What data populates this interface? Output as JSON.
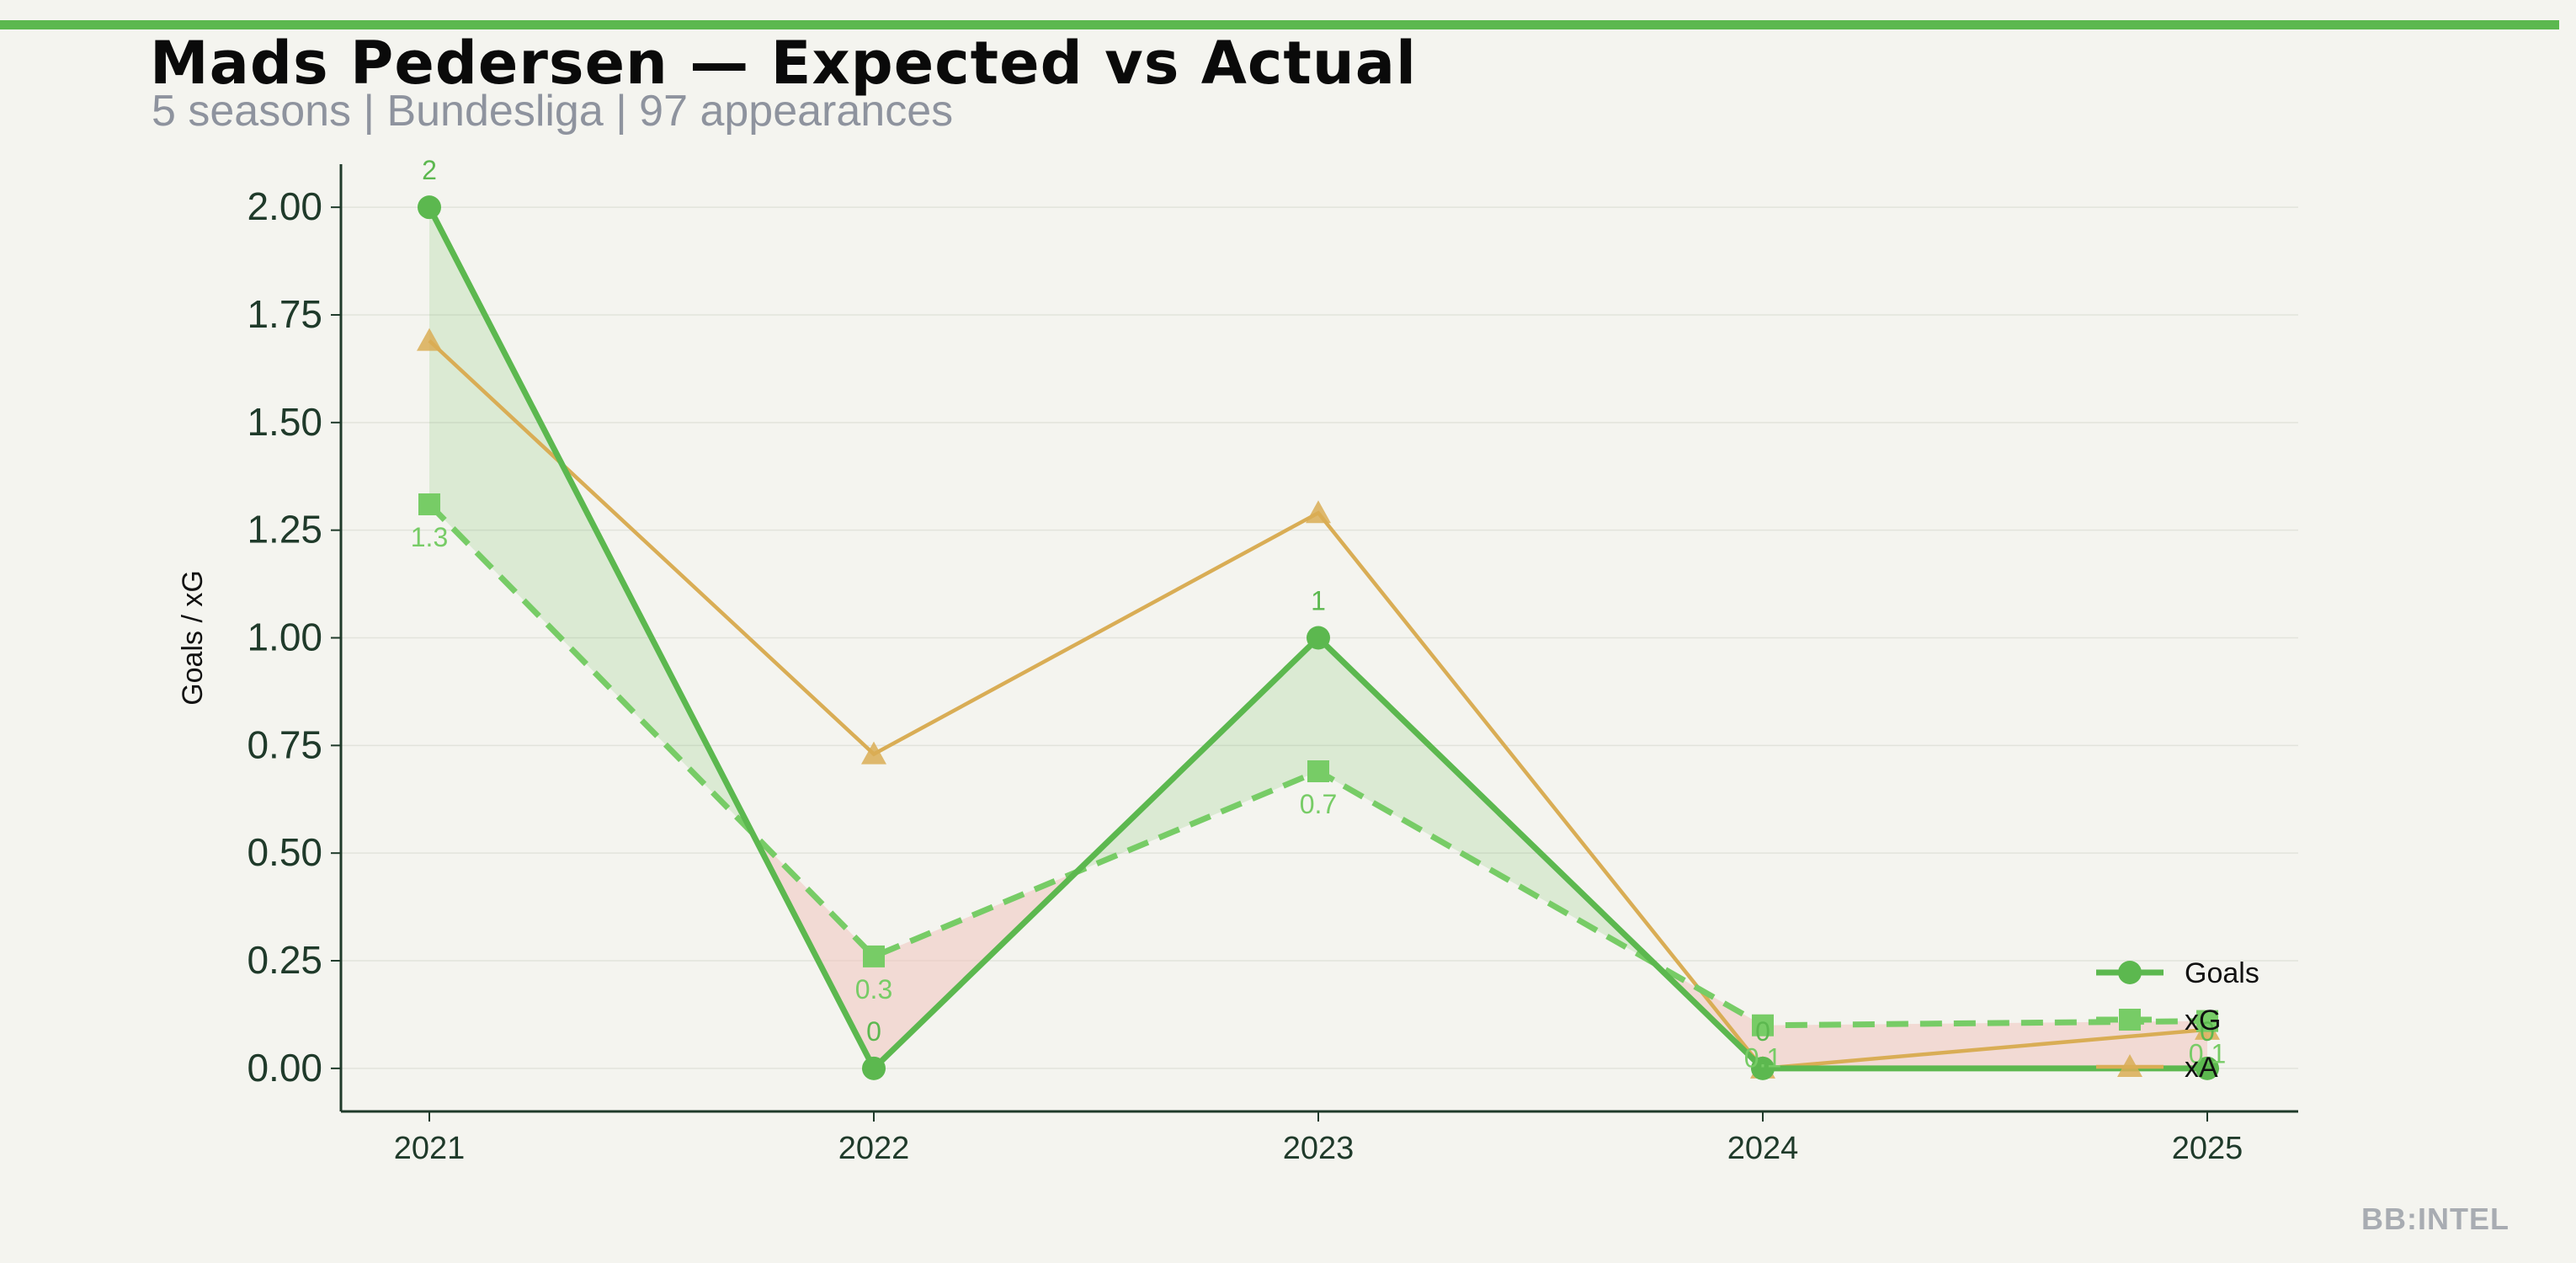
{
  "header": {
    "title": "Mads Pedersen — Expected vs Actual",
    "subtitle": "5 seasons | Bundesliga | 97 appearances"
  },
  "watermark": "BB:INTEL",
  "colors": {
    "accent": "#5cb84f",
    "goals": "#5cb84f",
    "xg": "#77cc66",
    "xa": "#d9ad55",
    "over_fill": "#5cb84f",
    "under_fill": "#f0c4bd",
    "axis": "#1f3a2a",
    "background": "#f4f4ef"
  },
  "chart_data": {
    "type": "line",
    "x": [
      "2021",
      "2022",
      "2023",
      "2024",
      "2025"
    ],
    "ylabel": "Goals / xG",
    "ylim": [
      -0.1,
      2.1
    ],
    "yticks": [
      "0.00",
      "0.25",
      "0.50",
      "0.75",
      "1.00",
      "1.25",
      "1.50",
      "1.75",
      "2.00"
    ],
    "grid": "horizontal, faint",
    "legend_position": "lower-right",
    "series": [
      {
        "name": "Goals",
        "values": [
          2,
          0,
          1,
          0,
          0
        ],
        "labels": [
          "2",
          "0",
          "1",
          "0",
          "0"
        ],
        "style": "solid",
        "marker": "circle"
      },
      {
        "name": "xG",
        "values": [
          1.31,
          0.26,
          0.69,
          0.1,
          0.11
        ],
        "labels": [
          "1.3",
          "0.3",
          "0.7",
          "0.1",
          "0.1"
        ],
        "style": "dashed",
        "marker": "square"
      },
      {
        "name": "xA",
        "values": [
          1.69,
          0.73,
          1.29,
          0.0,
          0.09
        ],
        "style": "solid",
        "marker": "triangle"
      }
    ]
  }
}
